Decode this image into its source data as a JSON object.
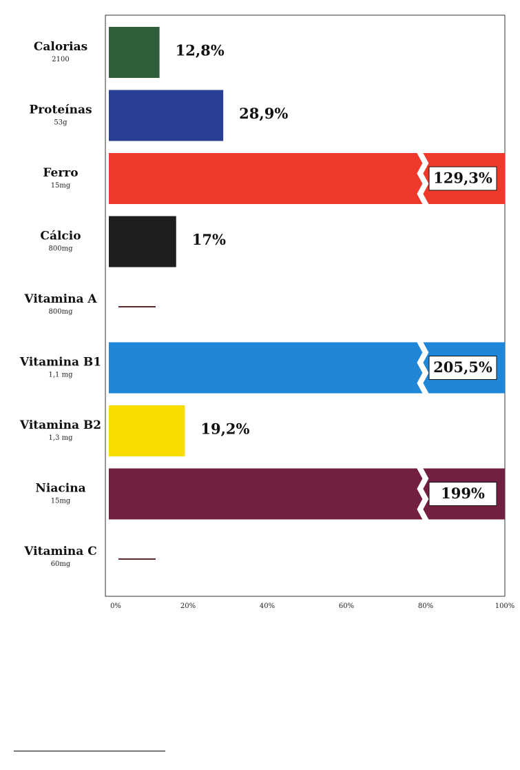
{
  "chart_data": {
    "type": "bar",
    "orientation": "horizontal",
    "categories": [
      {
        "name": "Calorias",
        "sub": "2100",
        "value": 12.8,
        "label": "12,8%",
        "color": "#2e5e3a",
        "broken": false
      },
      {
        "name": "Proteínas",
        "sub": "53g",
        "value": 28.9,
        "label": "28,9%",
        "color": "#283f95",
        "broken": false
      },
      {
        "name": "Ferro",
        "sub": "15mg",
        "value": 129.3,
        "label": "129,3%",
        "color": "#ef3a2b",
        "broken": true
      },
      {
        "name": "Cálcio",
        "sub": "800mg",
        "value": 17,
        "label": "17%",
        "color": "#1e1e1e",
        "broken": false
      },
      {
        "name": "Vitamina A",
        "sub": "800mg",
        "value": null,
        "label": "",
        "color": "#5a2a2a",
        "broken": false
      },
      {
        "name": "Vitamina B1",
        "sub": "1,1 mg",
        "value": 205.5,
        "label": "205,5%",
        "color": "#1f86d8",
        "broken": true
      },
      {
        "name": "Vitamina B2",
        "sub": "1,3 mg",
        "value": 19.2,
        "label": "19,2%",
        "color": "#f9dc00",
        "broken": false
      },
      {
        "name": "Niacina",
        "sub": "15mg",
        "value": 199,
        "label": "199%",
        "color": "#731f42",
        "broken": true
      },
      {
        "name": "Vitamina C",
        "sub": "60mg",
        "value": null,
        "label": "",
        "color": "#5a2a2a",
        "broken": false
      }
    ],
    "xlim": [
      0,
      100
    ],
    "xticks": [
      0,
      20,
      40,
      60,
      80,
      100
    ],
    "xtick_labels": [
      "0%",
      "20%",
      "40%",
      "60%",
      "80%",
      "100%"
    ],
    "grid": false,
    "legend": "none",
    "title": "",
    "xlabel": "",
    "ylabel": ""
  }
}
